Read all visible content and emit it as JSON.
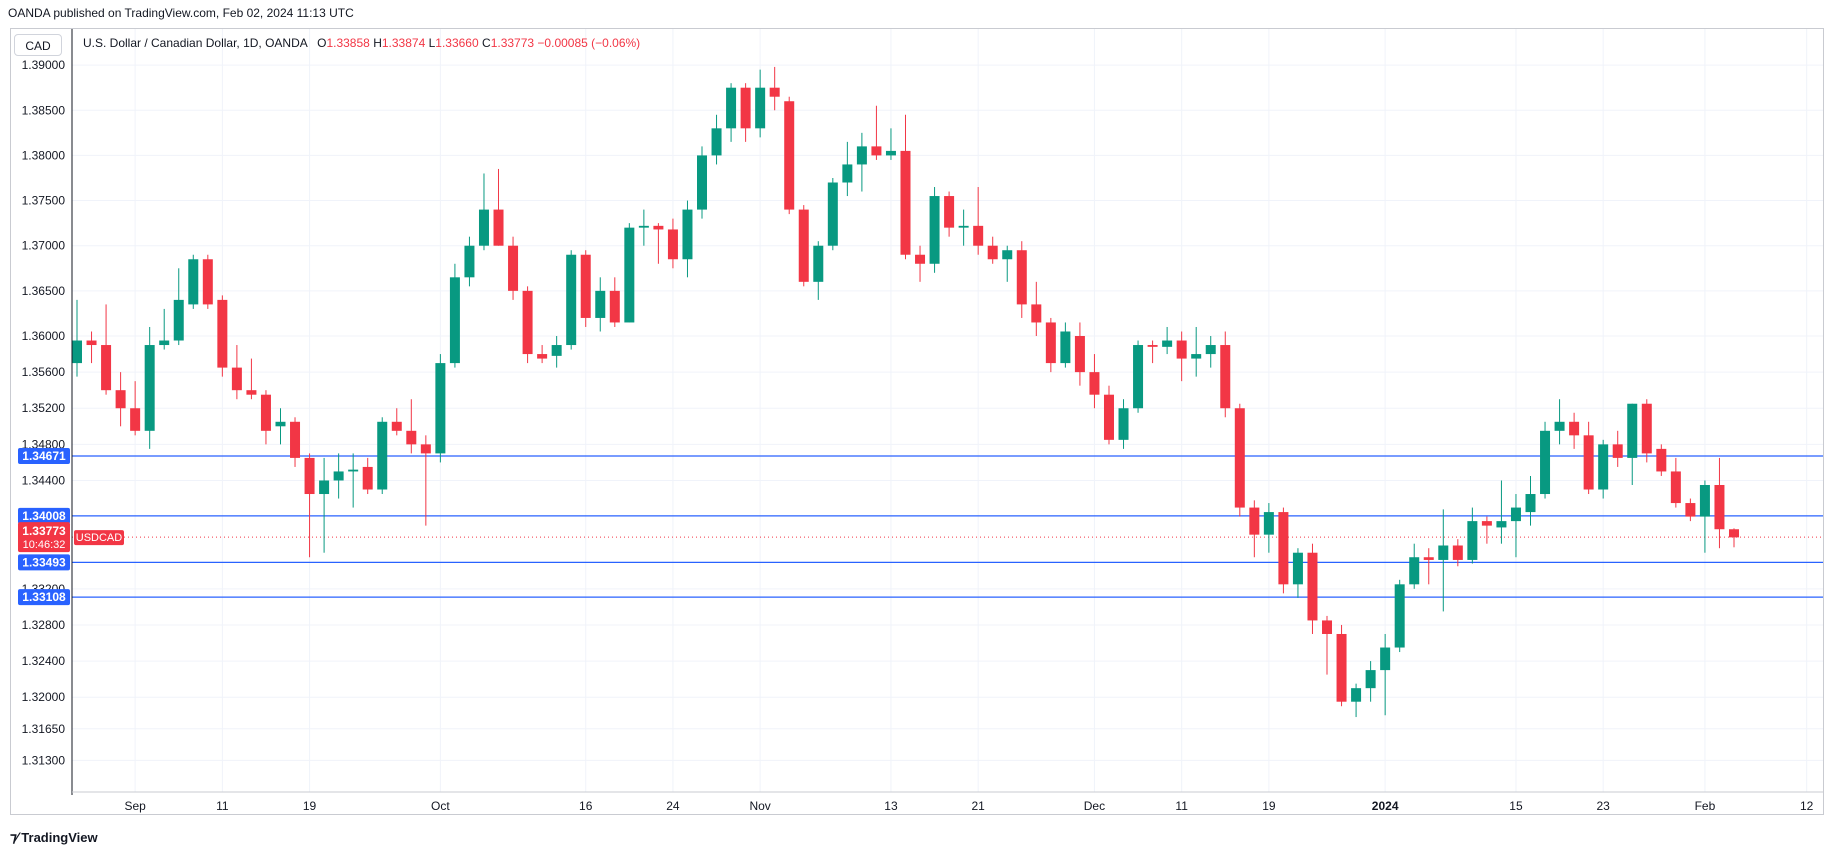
{
  "header": {
    "published": "OANDA published on TradingView.com, Feb 02, 2024 11:13 UTC"
  },
  "currency_button": "CAD",
  "legend": {
    "symbol": "U.S. Dollar / Canadian Dollar, 1D, OANDA",
    "o_label": "O",
    "o_value": "1.33858",
    "h_label": "H",
    "h_value": "1.33874",
    "l_label": "L",
    "l_value": "1.33660",
    "c_label": "C",
    "c_value": "1.33773",
    "change": "−0.00085 (−0.06%)"
  },
  "footer": {
    "logo_text": "TradingView"
  },
  "colors": {
    "up": "#089981",
    "down": "#f23645",
    "level_line": "#2962ff",
    "grid": "#f0f3fa",
    "axis_text": "#131722"
  },
  "chart_data": {
    "type": "candlestick",
    "symbol": "USDCAD",
    "y_range": [
      1.3095,
      1.394
    ],
    "y_ticks": [
      "1.31300",
      "1.31650",
      "1.32000",
      "1.32400",
      "1.32800",
      "1.33200",
      "1.34400",
      "1.34800",
      "1.35200",
      "1.35600",
      "1.36000",
      "1.36500",
      "1.37000",
      "1.37500",
      "1.38000",
      "1.38500",
      "1.39000"
    ],
    "x_labels": [
      {
        "i": 4,
        "label": "Sep",
        "bold": false
      },
      {
        "i": 10,
        "label": "11",
        "bold": false
      },
      {
        "i": 16,
        "label": "19",
        "bold": false
      },
      {
        "i": 25,
        "label": "Oct",
        "bold": false
      },
      {
        "i": 35,
        "label": "16",
        "bold": false
      },
      {
        "i": 41,
        "label": "24",
        "bold": false
      },
      {
        "i": 47,
        "label": "Nov",
        "bold": false
      },
      {
        "i": 56,
        "label": "13",
        "bold": false
      },
      {
        "i": 62,
        "label": "21",
        "bold": false
      },
      {
        "i": 70,
        "label": "Dec",
        "bold": false
      },
      {
        "i": 76,
        "label": "11",
        "bold": false
      },
      {
        "i": 82,
        "label": "19",
        "bold": false
      },
      {
        "i": 90,
        "label": "2024",
        "bold": true
      },
      {
        "i": 99,
        "label": "15",
        "bold": false
      },
      {
        "i": 105,
        "label": "23",
        "bold": false
      },
      {
        "i": 112,
        "label": "Feb",
        "bold": false
      },
      {
        "i": 119,
        "label": "12",
        "bold": false
      }
    ],
    "horizontal_levels": [
      {
        "value": 1.34671,
        "label": "1.34671"
      },
      {
        "value": 1.34008,
        "label": "1.34008"
      },
      {
        "value": 1.33493,
        "label": "1.33493"
      },
      {
        "value": 1.33108,
        "label": "1.33108"
      }
    ],
    "last_price": {
      "value": 1.33773,
      "label": "1.33773",
      "countdown": "10:46:32",
      "symbol_tag": "USDCAD"
    },
    "candles": [
      {
        "o": 1.357,
        "h": 1.364,
        "l": 1.3555,
        "c": 1.3595
      },
      {
        "o": 1.3595,
        "h": 1.3605,
        "l": 1.357,
        "c": 1.359
      },
      {
        "o": 1.359,
        "h": 1.3635,
        "l": 1.3535,
        "c": 1.354
      },
      {
        "o": 1.354,
        "h": 1.356,
        "l": 1.35,
        "c": 1.352
      },
      {
        "o": 1.352,
        "h": 1.355,
        "l": 1.349,
        "c": 1.3495
      },
      {
        "o": 1.3495,
        "h": 1.361,
        "l": 1.3475,
        "c": 1.359
      },
      {
        "o": 1.359,
        "h": 1.363,
        "l": 1.3585,
        "c": 1.3595
      },
      {
        "o": 1.3595,
        "h": 1.3675,
        "l": 1.359,
        "c": 1.364
      },
      {
        "o": 1.3635,
        "h": 1.369,
        "l": 1.363,
        "c": 1.3685
      },
      {
        "o": 1.3685,
        "h": 1.369,
        "l": 1.363,
        "c": 1.3635
      },
      {
        "o": 1.364,
        "h": 1.3645,
        "l": 1.3555,
        "c": 1.3565
      },
      {
        "o": 1.3565,
        "h": 1.359,
        "l": 1.353,
        "c": 1.354
      },
      {
        "o": 1.354,
        "h": 1.3575,
        "l": 1.353,
        "c": 1.3535
      },
      {
        "o": 1.3535,
        "h": 1.354,
        "l": 1.348,
        "c": 1.3495
      },
      {
        "o": 1.35,
        "h": 1.352,
        "l": 1.348,
        "c": 1.3505
      },
      {
        "o": 1.3505,
        "h": 1.351,
        "l": 1.3455,
        "c": 1.3465
      },
      {
        "o": 1.3465,
        "h": 1.347,
        "l": 1.3355,
        "c": 1.3425
      },
      {
        "o": 1.3425,
        "h": 1.3465,
        "l": 1.336,
        "c": 1.344
      },
      {
        "o": 1.344,
        "h": 1.347,
        "l": 1.342,
        "c": 1.345
      },
      {
        "o": 1.345,
        "h": 1.347,
        "l": 1.341,
        "c": 1.3452
      },
      {
        "o": 1.3455,
        "h": 1.3465,
        "l": 1.3425,
        "c": 1.343
      },
      {
        "o": 1.343,
        "h": 1.351,
        "l": 1.3425,
        "c": 1.3505
      },
      {
        "o": 1.3505,
        "h": 1.352,
        "l": 1.349,
        "c": 1.3495
      },
      {
        "o": 1.3495,
        "h": 1.353,
        "l": 1.347,
        "c": 1.348
      },
      {
        "o": 1.348,
        "h": 1.349,
        "l": 1.339,
        "c": 1.347
      },
      {
        "o": 1.347,
        "h": 1.358,
        "l": 1.346,
        "c": 1.357
      },
      {
        "o": 1.357,
        "h": 1.368,
        "l": 1.3565,
        "c": 1.3665
      },
      {
        "o": 1.3665,
        "h": 1.371,
        "l": 1.3655,
        "c": 1.37
      },
      {
        "o": 1.37,
        "h": 1.378,
        "l": 1.3695,
        "c": 1.374
      },
      {
        "o": 1.374,
        "h": 1.3785,
        "l": 1.37,
        "c": 1.37
      },
      {
        "o": 1.37,
        "h": 1.371,
        "l": 1.364,
        "c": 1.365
      },
      {
        "o": 1.365,
        "h": 1.3655,
        "l": 1.357,
        "c": 1.358
      },
      {
        "o": 1.358,
        "h": 1.359,
        "l": 1.357,
        "c": 1.3575
      },
      {
        "o": 1.3578,
        "h": 1.36,
        "l": 1.3565,
        "c": 1.359
      },
      {
        "o": 1.359,
        "h": 1.3695,
        "l": 1.3585,
        "c": 1.369
      },
      {
        "o": 1.369,
        "h": 1.3695,
        "l": 1.361,
        "c": 1.362
      },
      {
        "o": 1.362,
        "h": 1.3665,
        "l": 1.3605,
        "c": 1.365
      },
      {
        "o": 1.365,
        "h": 1.3665,
        "l": 1.361,
        "c": 1.3615
      },
      {
        "o": 1.3615,
        "h": 1.3725,
        "l": 1.3615,
        "c": 1.372
      },
      {
        "o": 1.372,
        "h": 1.374,
        "l": 1.37,
        "c": 1.3722
      },
      {
        "o": 1.3722,
        "h": 1.3725,
        "l": 1.368,
        "c": 1.3718
      },
      {
        "o": 1.3718,
        "h": 1.373,
        "l": 1.3675,
        "c": 1.3685
      },
      {
        "o": 1.3685,
        "h": 1.375,
        "l": 1.3665,
        "c": 1.374
      },
      {
        "o": 1.374,
        "h": 1.381,
        "l": 1.373,
        "c": 1.38
      },
      {
        "o": 1.38,
        "h": 1.3845,
        "l": 1.379,
        "c": 1.383
      },
      {
        "o": 1.383,
        "h": 1.388,
        "l": 1.3815,
        "c": 1.3875
      },
      {
        "o": 1.3875,
        "h": 1.388,
        "l": 1.3815,
        "c": 1.383
      },
      {
        "o": 1.383,
        "h": 1.3895,
        "l": 1.382,
        "c": 1.3875
      },
      {
        "o": 1.3875,
        "h": 1.3898,
        "l": 1.385,
        "c": 1.3865
      },
      {
        "o": 1.386,
        "h": 1.3865,
        "l": 1.3735,
        "c": 1.374
      },
      {
        "o": 1.374,
        "h": 1.3745,
        "l": 1.3655,
        "c": 1.366
      },
      {
        "o": 1.366,
        "h": 1.3705,
        "l": 1.364,
        "c": 1.37
      },
      {
        "o": 1.37,
        "h": 1.3775,
        "l": 1.3695,
        "c": 1.377
      },
      {
        "o": 1.377,
        "h": 1.3815,
        "l": 1.3755,
        "c": 1.379
      },
      {
        "o": 1.379,
        "h": 1.3825,
        "l": 1.376,
        "c": 1.381
      },
      {
        "o": 1.381,
        "h": 1.3855,
        "l": 1.3795,
        "c": 1.38
      },
      {
        "o": 1.38,
        "h": 1.383,
        "l": 1.3795,
        "c": 1.3805
      },
      {
        "o": 1.3805,
        "h": 1.3845,
        "l": 1.3685,
        "c": 1.369
      },
      {
        "o": 1.369,
        "h": 1.37,
        "l": 1.366,
        "c": 1.368
      },
      {
        "o": 1.368,
        "h": 1.3765,
        "l": 1.367,
        "c": 1.3755
      },
      {
        "o": 1.3755,
        "h": 1.376,
        "l": 1.371,
        "c": 1.372
      },
      {
        "o": 1.372,
        "h": 1.374,
        "l": 1.37,
        "c": 1.3722
      },
      {
        "o": 1.3722,
        "h": 1.3765,
        "l": 1.369,
        "c": 1.37
      },
      {
        "o": 1.37,
        "h": 1.371,
        "l": 1.368,
        "c": 1.3685
      },
      {
        "o": 1.3685,
        "h": 1.37,
        "l": 1.366,
        "c": 1.3695
      },
      {
        "o": 1.3695,
        "h": 1.3705,
        "l": 1.362,
        "c": 1.3635
      },
      {
        "o": 1.3635,
        "h": 1.366,
        "l": 1.36,
        "c": 1.3615
      },
      {
        "o": 1.3615,
        "h": 1.362,
        "l": 1.356,
        "c": 1.357
      },
      {
        "o": 1.357,
        "h": 1.3615,
        "l": 1.3565,
        "c": 1.3605
      },
      {
        "o": 1.36,
        "h": 1.3615,
        "l": 1.3545,
        "c": 1.356
      },
      {
        "o": 1.356,
        "h": 1.358,
        "l": 1.352,
        "c": 1.3535
      },
      {
        "o": 1.3535,
        "h": 1.3545,
        "l": 1.348,
        "c": 1.3485
      },
      {
        "o": 1.3485,
        "h": 1.353,
        "l": 1.3475,
        "c": 1.352
      },
      {
        "o": 1.352,
        "h": 1.3595,
        "l": 1.3515,
        "c": 1.359
      },
      {
        "o": 1.359,
        "h": 1.3595,
        "l": 1.357,
        "c": 1.3588
      },
      {
        "o": 1.3588,
        "h": 1.361,
        "l": 1.358,
        "c": 1.3595
      },
      {
        "o": 1.3595,
        "h": 1.3605,
        "l": 1.355,
        "c": 1.3575
      },
      {
        "o": 1.3575,
        "h": 1.361,
        "l": 1.3555,
        "c": 1.358
      },
      {
        "o": 1.358,
        "h": 1.36,
        "l": 1.3565,
        "c": 1.359
      },
      {
        "o": 1.359,
        "h": 1.3605,
        "l": 1.351,
        "c": 1.352
      },
      {
        "o": 1.352,
        "h": 1.3525,
        "l": 1.34,
        "c": 1.341
      },
      {
        "o": 1.341,
        "h": 1.3418,
        "l": 1.3355,
        "c": 1.338
      },
      {
        "o": 1.338,
        "h": 1.3415,
        "l": 1.336,
        "c": 1.3405
      },
      {
        "o": 1.3405,
        "h": 1.341,
        "l": 1.3315,
        "c": 1.3325
      },
      {
        "o": 1.3325,
        "h": 1.3365,
        "l": 1.331,
        "c": 1.336
      },
      {
        "o": 1.336,
        "h": 1.337,
        "l": 1.327,
        "c": 1.3285
      },
      {
        "o": 1.3285,
        "h": 1.329,
        "l": 1.3225,
        "c": 1.327
      },
      {
        "o": 1.327,
        "h": 1.328,
        "l": 1.319,
        "c": 1.3195
      },
      {
        "o": 1.3195,
        "h": 1.3215,
        "l": 1.3178,
        "c": 1.321
      },
      {
        "o": 1.321,
        "h": 1.324,
        "l": 1.3195,
        "c": 1.323
      },
      {
        "o": 1.323,
        "h": 1.327,
        "l": 1.318,
        "c": 1.3255
      },
      {
        "o": 1.3255,
        "h": 1.333,
        "l": 1.325,
        "c": 1.3325
      },
      {
        "o": 1.3325,
        "h": 1.337,
        "l": 1.332,
        "c": 1.3355
      },
      {
        "o": 1.3355,
        "h": 1.3365,
        "l": 1.3325,
        "c": 1.3352
      },
      {
        "o": 1.3352,
        "h": 1.3408,
        "l": 1.3295,
        "c": 1.3368
      },
      {
        "o": 1.3368,
        "h": 1.3375,
        "l": 1.3345,
        "c": 1.3352
      },
      {
        "o": 1.3352,
        "h": 1.341,
        "l": 1.3348,
        "c": 1.3395
      },
      {
        "o": 1.3395,
        "h": 1.34,
        "l": 1.337,
        "c": 1.339
      },
      {
        "o": 1.3388,
        "h": 1.344,
        "l": 1.337,
        "c": 1.3395
      },
      {
        "o": 1.3395,
        "h": 1.3425,
        "l": 1.3355,
        "c": 1.341
      },
      {
        "o": 1.3405,
        "h": 1.3445,
        "l": 1.339,
        "c": 1.3425
      },
      {
        "o": 1.3425,
        "h": 1.3505,
        "l": 1.342,
        "c": 1.3495
      },
      {
        "o": 1.3495,
        "h": 1.353,
        "l": 1.348,
        "c": 1.3505
      },
      {
        "o": 1.3505,
        "h": 1.3515,
        "l": 1.3475,
        "c": 1.349
      },
      {
        "o": 1.349,
        "h": 1.3505,
        "l": 1.3425,
        "c": 1.343
      },
      {
        "o": 1.343,
        "h": 1.3485,
        "l": 1.342,
        "c": 1.348
      },
      {
        "o": 1.348,
        "h": 1.3495,
        "l": 1.3455,
        "c": 1.3465
      },
      {
        "o": 1.3465,
        "h": 1.3525,
        "l": 1.3435,
        "c": 1.3525
      },
      {
        "o": 1.3525,
        "h": 1.353,
        "l": 1.346,
        "c": 1.347
      },
      {
        "o": 1.3475,
        "h": 1.348,
        "l": 1.3445,
        "c": 1.345
      },
      {
        "o": 1.345,
        "h": 1.3465,
        "l": 1.341,
        "c": 1.3415
      },
      {
        "o": 1.3415,
        "h": 1.342,
        "l": 1.3395,
        "c": 1.34
      },
      {
        "o": 1.34,
        "h": 1.344,
        "l": 1.336,
        "c": 1.3435
      },
      {
        "o": 1.3435,
        "h": 1.3465,
        "l": 1.3365,
        "c": 1.3386
      },
      {
        "o": 1.3386,
        "h": 1.3387,
        "l": 1.3366,
        "c": 1.3377
      }
    ]
  }
}
